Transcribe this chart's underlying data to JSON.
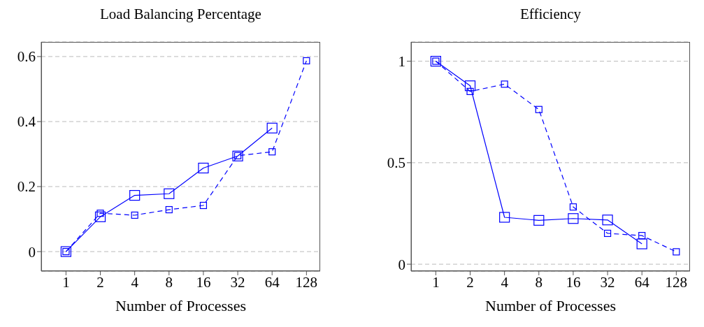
{
  "chart_data": [
    {
      "type": "line",
      "title": "Load Balancing Percentage",
      "xlabel": "Number of Processes",
      "categories": [
        "1",
        "2",
        "4",
        "8",
        "16",
        "32",
        "64",
        "128"
      ],
      "series": [
        {
          "color": "#0000ff",
          "line_style": "solid",
          "values": [
            0,
            0.107,
            0.173,
            0.178,
            0.257,
            0.294,
            0.38,
            null
          ]
        },
        {
          "color": "#0000ff",
          "line_style": "dashed",
          "values": [
            0,
            0.118,
            0.112,
            0.129,
            0.142,
            0.295,
            0.307,
            0.587
          ]
        }
      ],
      "ylim": [
        -0.06,
        0.645
      ],
      "yticks": [
        0,
        0.2,
        0.4,
        0.6
      ],
      "grid": "y",
      "marker": "square",
      "legend": false
    },
    {
      "type": "line",
      "title": "Efficiency",
      "xlabel": "Number of Processes",
      "categories": [
        "1",
        "2",
        "4",
        "8",
        "16",
        "32",
        "64",
        "128"
      ],
      "series": [
        {
          "color": "#0000ff",
          "line_style": "solid",
          "values": [
            1,
            0.879,
            0.231,
            0.216,
            0.225,
            0.218,
            0.1,
            null
          ]
        },
        {
          "color": "#0000ff",
          "line_style": "dashed",
          "values": [
            1,
            0.851,
            0.887,
            0.762,
            0.282,
            0.152,
            0.141,
            0.061
          ]
        }
      ],
      "ylim": [
        -0.034,
        1.095
      ],
      "yticks": [
        0,
        0.5,
        1
      ],
      "grid": "y",
      "marker": "square",
      "legend": false
    }
  ]
}
